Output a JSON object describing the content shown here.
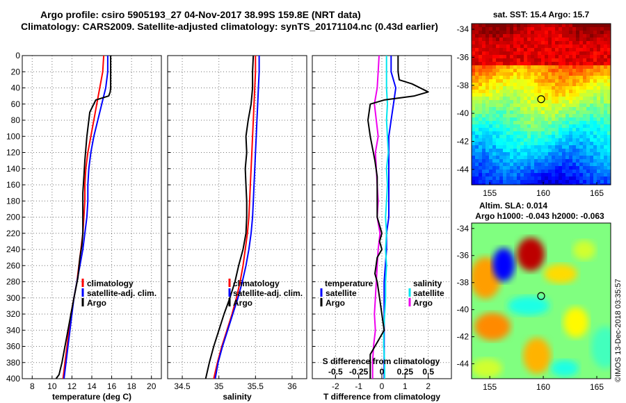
{
  "title_line1": "Argo profile: csiro 5905193_27 04-Nov-2017 38.99S 159.8E (NRT data)",
  "title_line2": "Climatology: CARS2009. Satellite-adjusted climatology: synTS_20171104.nc (0.43d earlier)",
  "credit": "©IMOS 13-Dec-2018 03:35:57",
  "colors": {
    "climatology": "#ff0000",
    "satellite": "#0000ff",
    "argo": "#000000",
    "satellite_s": "#00e5ee",
    "argo_s": "#ee00ee"
  },
  "chart_data": [
    {
      "id": "temp",
      "type": "line",
      "xlabel": "temperature (deg C)",
      "ylabel": "",
      "xlim": [
        7,
        21
      ],
      "ylim": [
        0,
        400
      ],
      "xticks": [
        8,
        10,
        12,
        14,
        16,
        18,
        20
      ],
      "yticks": [
        0,
        20,
        40,
        60,
        80,
        100,
        120,
        140,
        160,
        180,
        200,
        220,
        240,
        260,
        280,
        300,
        320,
        340,
        360,
        380,
        400
      ],
      "legend": [
        "climatology",
        "satellite-adj. clim.",
        "Argo"
      ],
      "series": [
        {
          "name": "climatology",
          "color": "#ff0000",
          "x": [
            15.2,
            15.1,
            14.8,
            14.5,
            14.2,
            13.9,
            13.6,
            13.4,
            13.3,
            13.3,
            13.2,
            13.1,
            12.9,
            12.7,
            12.5,
            12.2,
            11.9,
            11.7,
            11.5,
            11.3,
            11.1
          ],
          "y": [
            0,
            20,
            40,
            60,
            80,
            100,
            120,
            140,
            160,
            180,
            200,
            220,
            240,
            260,
            280,
            300,
            320,
            340,
            360,
            380,
            400
          ]
        },
        {
          "name": "satellite-adj. clim.",
          "color": "#0000ff",
          "x": [
            15.6,
            15.6,
            15.4,
            15.0,
            14.6,
            14.2,
            13.9,
            13.7,
            13.6,
            13.6,
            13.5,
            13.3,
            13.1,
            12.8,
            12.5,
            12.2,
            12.0,
            11.8,
            11.6,
            11.4,
            11.2
          ],
          "y": [
            0,
            20,
            40,
            60,
            80,
            100,
            120,
            140,
            160,
            180,
            200,
            220,
            240,
            260,
            280,
            300,
            320,
            340,
            360,
            380,
            400
          ]
        },
        {
          "name": "Argo",
          "color": "#000000",
          "x": [
            15.9,
            15.9,
            15.9,
            15.85,
            15.7,
            14.4,
            13.8,
            13.5,
            13.3,
            13.2,
            13.1,
            13.1,
            13.1,
            13.1,
            13.0,
            12.8,
            12.6,
            12.2,
            11.9,
            11.6,
            11.3,
            11.0,
            10.7,
            10.4
          ],
          "y": [
            0,
            20,
            40,
            45,
            50,
            55,
            70,
            100,
            130,
            150,
            170,
            190,
            200,
            220,
            235,
            250,
            275,
            300,
            320,
            340,
            360,
            380,
            395,
            400
          ]
        }
      ]
    },
    {
      "id": "sal",
      "type": "line",
      "xlabel": "salinity",
      "ylabel": "",
      "xlim": [
        34.3,
        36.2
      ],
      "ylim": [
        0,
        400
      ],
      "xticks": [
        34.5,
        35,
        35.5,
        36
      ],
      "yticks": [
        0,
        20,
        40,
        60,
        80,
        100,
        120,
        140,
        160,
        180,
        200,
        220,
        240,
        260,
        280,
        300,
        320,
        340,
        360,
        380,
        400
      ],
      "legend": [
        "climatology",
        "satellite-adj. clim.",
        "Argo"
      ],
      "series": [
        {
          "name": "climatology",
          "color": "#ff0000",
          "x": [
            35.5,
            35.5,
            35.49,
            35.48,
            35.47,
            35.46,
            35.45,
            35.44,
            35.43,
            35.42,
            35.41,
            35.39,
            35.36,
            35.33,
            35.29,
            35.24,
            35.18,
            35.11,
            35.04,
            34.98,
            34.93
          ],
          "y": [
            0,
            20,
            40,
            60,
            80,
            100,
            120,
            140,
            160,
            180,
            200,
            220,
            240,
            260,
            280,
            300,
            320,
            340,
            360,
            380,
            400
          ]
        },
        {
          "name": "satellite-adj. clim.",
          "color": "#0000ff",
          "x": [
            35.55,
            35.55,
            35.54,
            35.53,
            35.52,
            35.51,
            35.5,
            35.49,
            35.48,
            35.47,
            35.46,
            35.44,
            35.41,
            35.37,
            35.32,
            35.26,
            35.19,
            35.12,
            35.05,
            34.99,
            34.95
          ],
          "y": [
            0,
            20,
            40,
            60,
            80,
            100,
            120,
            140,
            160,
            180,
            200,
            220,
            240,
            260,
            280,
            300,
            320,
            340,
            360,
            380,
            400
          ]
        },
        {
          "name": "Argo",
          "color": "#000000",
          "x": [
            35.47,
            35.46,
            35.46,
            35.44,
            35.4,
            35.37,
            35.38,
            35.36,
            35.37,
            35.38,
            35.38,
            35.37,
            35.33,
            35.27,
            35.22,
            35.15,
            35.07,
            35.0,
            34.93,
            34.87,
            34.82
          ],
          "y": [
            0,
            20,
            40,
            60,
            80,
            100,
            120,
            140,
            160,
            180,
            200,
            220,
            240,
            260,
            280,
            300,
            320,
            340,
            360,
            380,
            400
          ]
        }
      ]
    },
    {
      "id": "diff",
      "type": "line",
      "xlabel": "T difference from climatology",
      "xlabel2": "S difference from climatology",
      "xlim": [
        -3,
        3
      ],
      "xlim_s": [
        -0.75,
        0.75
      ],
      "ylim": [
        0,
        400
      ],
      "xticks": [
        -2,
        -1,
        0,
        1,
        2
      ],
      "xticks_s": [
        -0.5,
        -0.25,
        0,
        0.25,
        0.5
      ],
      "xticklabels_s": [
        "-0.5",
        "-0.25",
        "0",
        "0.25",
        "0.5"
      ],
      "yticks": [
        0,
        20,
        40,
        60,
        80,
        100,
        120,
        140,
        160,
        180,
        200,
        220,
        240,
        260,
        280,
        300,
        320,
        340,
        360,
        380,
        400
      ],
      "legend_t_title": "temperature",
      "legend_s_title": "salinity",
      "legend_t": [
        "satellite",
        "Argo"
      ],
      "legend_s": [
        "satellite",
        "Argo"
      ],
      "series": [
        {
          "name": "T satellite",
          "color": "#0000ff",
          "x": [
            0.4,
            0.4,
            0.6,
            0.5,
            0.4,
            0.3,
            0.3,
            0.3,
            0.3,
            0.3,
            0.3,
            0.2,
            0.2,
            0.15,
            0.1,
            0.1,
            0.1,
            0.1,
            0.1,
            0.1,
            0.1
          ],
          "y": [
            0,
            20,
            40,
            60,
            80,
            100,
            120,
            140,
            160,
            180,
            200,
            220,
            240,
            260,
            280,
            300,
            320,
            340,
            360,
            380,
            400
          ]
        },
        {
          "name": "S satellite",
          "color": "#00e5ee",
          "x": [
            0.05,
            0.05,
            0.05,
            0.06,
            0.05,
            0.06,
            0.07,
            0.05,
            0.06,
            0.05,
            0.04,
            0.05,
            0.04,
            0.05,
            0.04,
            0.04,
            0.03,
            0.02,
            0.02,
            0.03,
            0.03
          ],
          "y": [
            0,
            20,
            40,
            60,
            80,
            100,
            120,
            140,
            160,
            180,
            200,
            220,
            240,
            260,
            280,
            300,
            320,
            340,
            360,
            380,
            400
          ]
        },
        {
          "name": "S Argo",
          "color": "#ee00ee",
          "x": [
            -0.03,
            -0.04,
            -0.05,
            -0.08,
            -0.06,
            -0.04,
            -0.07,
            -0.06,
            -0.05,
            -0.04,
            -0.05,
            -0.02,
            -0.04,
            -0.05,
            -0.06,
            -0.07,
            -0.08,
            -0.07,
            -0.09,
            -0.1,
            -0.1
          ],
          "y": [
            0,
            20,
            40,
            60,
            80,
            100,
            120,
            140,
            160,
            180,
            200,
            220,
            240,
            260,
            280,
            300,
            320,
            340,
            360,
            380,
            400
          ]
        },
        {
          "name": "T Argo",
          "color": "#000000",
          "x": [
            0.7,
            0.7,
            0.7,
            0.75,
            1.3,
            2.0,
            1.4,
            0.1,
            -0.5,
            -0.6,
            -0.5,
            -0.3,
            -0.2,
            -0.2,
            -0.2,
            0.0,
            -0.1,
            0.0,
            -0.2,
            -0.3,
            -0.2,
            -0.1,
            0.0,
            0.1,
            -0.1,
            -0.3,
            -0.5,
            -0.5,
            -0.5
          ],
          "y": [
            0,
            10,
            20,
            30,
            35,
            45,
            50,
            55,
            60,
            80,
            100,
            130,
            150,
            180,
            200,
            220,
            230,
            240,
            250,
            270,
            280,
            300,
            320,
            340,
            350,
            360,
            370,
            390,
            400
          ]
        }
      ]
    },
    {
      "id": "sst",
      "type": "heatmap",
      "title": "sat. SST: 15.4 Argo: 15.7",
      "xlim": [
        153.3,
        166.3
      ],
      "ylim": [
        -45.1,
        -33.6
      ],
      "xticks": [
        155,
        160,
        165
      ],
      "yticks": [
        -34,
        -36,
        -38,
        -40,
        -42,
        -44
      ],
      "marker": {
        "lon": 159.8,
        "lat": -38.99
      }
    },
    {
      "id": "sla",
      "type": "heatmap",
      "title": "Altim. SLA: 0.014",
      "subtitle": "Argo h1000: -0.043 h2000: -0.063",
      "xlim": [
        153.3,
        166.3
      ],
      "ylim": [
        -45.1,
        -33.6
      ],
      "xticks": [
        155,
        160,
        165
      ],
      "yticks": [
        -34,
        -36,
        -38,
        -40,
        -42,
        -44
      ],
      "marker": {
        "lon": 159.8,
        "lat": -38.99
      }
    }
  ]
}
